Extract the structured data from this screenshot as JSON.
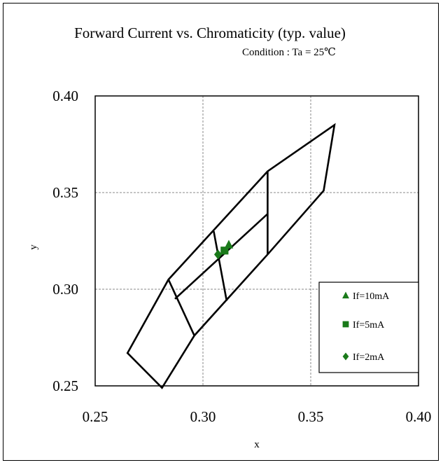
{
  "chart_data": {
    "type": "scatter",
    "title": "Forward Current vs. Chromaticity (typ. value)",
    "subtitle": "Condition : Ta = 25℃",
    "xlabel": "x",
    "ylabel": "y",
    "xlim": [
      0.25,
      0.4
    ],
    "ylim": [
      0.25,
      0.4
    ],
    "x_ticks": [
      0.25,
      0.3,
      0.35,
      0.4
    ],
    "y_ticks": [
      0.25,
      0.3,
      0.35,
      0.4
    ],
    "x_tick_labels": [
      "0.25",
      "0.30",
      "0.35",
      "0.40"
    ],
    "y_tick_labels": [
      "0.25",
      "0.30",
      "0.35",
      "0.40"
    ],
    "grid": true,
    "legend_position": "bottom-right",
    "color": "#1a7a1a",
    "bin_regions": [
      [
        [
          0.265,
          0.267
        ],
        [
          0.284,
          0.305
        ],
        [
          0.33,
          0.361
        ],
        [
          0.361,
          0.385
        ],
        [
          0.356,
          0.351
        ],
        [
          0.33,
          0.318
        ],
        [
          0.296,
          0.276
        ],
        [
          0.281,
          0.249
        ]
      ],
      [
        [
          0.284,
          0.305
        ],
        [
          0.296,
          0.276
        ]
      ],
      [
        [
          0.287,
          0.295
        ],
        [
          0.33,
          0.339
        ]
      ],
      [
        [
          0.305,
          0.33
        ],
        [
          0.311,
          0.294
        ]
      ],
      [
        [
          0.33,
          0.361
        ],
        [
          0.33,
          0.318
        ]
      ]
    ],
    "series": [
      {
        "name": "If=10mA",
        "marker": "triangle",
        "points": [
          [
            0.312,
            0.323
          ]
        ]
      },
      {
        "name": "If=5mA",
        "marker": "square",
        "points": [
          [
            0.31,
            0.32
          ]
        ]
      },
      {
        "name": "If=2mA",
        "marker": "diamond",
        "points": [
          [
            0.307,
            0.318
          ]
        ]
      }
    ]
  }
}
